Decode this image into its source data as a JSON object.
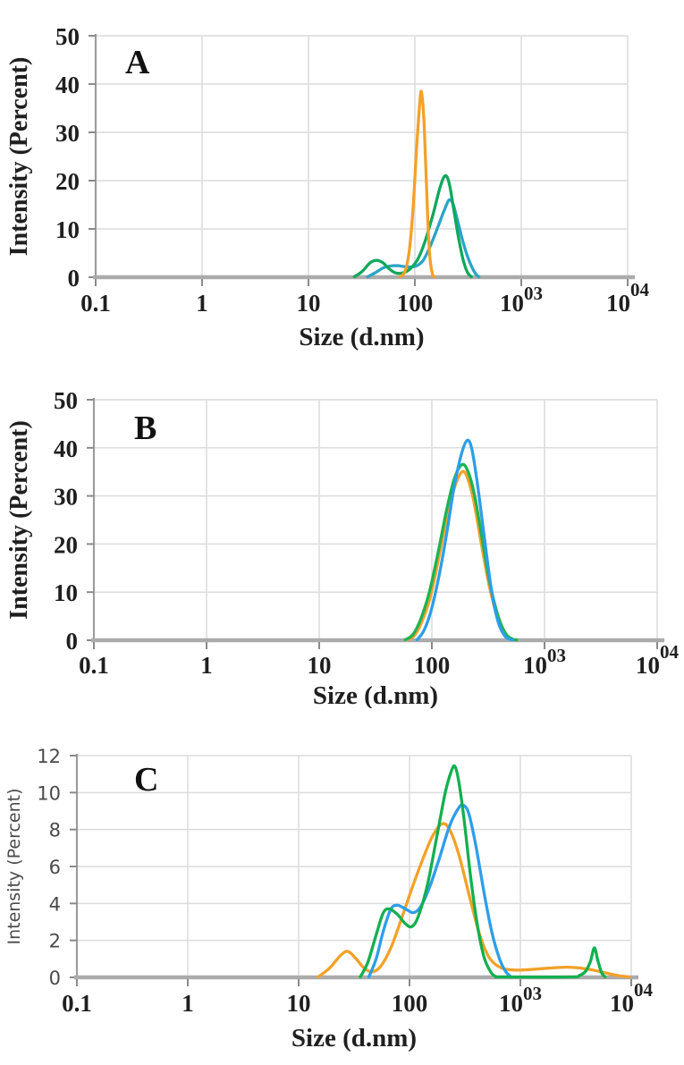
{
  "figure": {
    "description": "Three stacked dynamic light scattering intensity distribution plots",
    "background": "#ffffff",
    "text_color": "#1f1f1f",
    "grid_color": "#dcdcdc",
    "axis_color": "#9d9d9d",
    "baseline_color": "#ababab",
    "tick_color": "#8a8a8a"
  },
  "chart_data": [
    {
      "type": "line",
      "panel_label": "A",
      "xlabel": "Size (d.nm)",
      "ylabel": "Intensity (Percent)",
      "xscale": "log",
      "xlim": [
        0.1,
        10000
      ],
      "ylim": [
        0,
        50
      ],
      "grid": true,
      "legend": "none",
      "yticks": [
        0,
        10,
        20,
        30,
        40,
        50
      ],
      "xticks": [
        {
          "value": 0.1,
          "label": "0.1",
          "sup": ""
        },
        {
          "value": 1,
          "label": "1",
          "sup": ""
        },
        {
          "value": 10,
          "label": "10",
          "sup": ""
        },
        {
          "value": 100,
          "label": "100",
          "sup": ""
        },
        {
          "value": 1000,
          "label": "10",
          "sup": "03"
        },
        {
          "value": 10000,
          "label": "10",
          "sup": "04"
        }
      ],
      "draw_order": [
        "blue",
        "green",
        "orange"
      ],
      "series": [
        {
          "name": "orange",
          "color": "#f3a128",
          "points": [
            [
              72,
              0
            ],
            [
              80,
              1
            ],
            [
              88,
              5
            ],
            [
              96,
              14
            ],
            [
              104,
              27
            ],
            [
              112,
              37
            ],
            [
              116,
              38
            ],
            [
              122,
              32
            ],
            [
              128,
              20
            ],
            [
              134,
              9
            ],
            [
              140,
              3
            ],
            [
              147,
              0.5
            ],
            [
              152,
              0
            ]
          ]
        },
        {
          "name": "green",
          "color": "#10a85c",
          "points": [
            [
              27,
              0
            ],
            [
              32,
              1.2
            ],
            [
              38,
              3
            ],
            [
              44,
              3.5
            ],
            [
              50,
              3
            ],
            [
              57,
              1.8
            ],
            [
              64,
              1
            ],
            [
              72,
              0.8
            ],
            [
              82,
              1.1
            ],
            [
              93,
              2
            ],
            [
              107,
              3.8
            ],
            [
              125,
              7.5
            ],
            [
              148,
              13
            ],
            [
              172,
              18.5
            ],
            [
              192,
              21
            ],
            [
              210,
              19.5
            ],
            [
              232,
              14
            ],
            [
              258,
              8
            ],
            [
              285,
              3.5
            ],
            [
              312,
              1
            ],
            [
              340,
              0
            ]
          ]
        },
        {
          "name": "blue",
          "color": "#2aa4c6",
          "points": [
            [
              36,
              0
            ],
            [
              43,
              1
            ],
            [
              50,
              1.9
            ],
            [
              58,
              2.3
            ],
            [
              68,
              2.4
            ],
            [
              80,
              2.2
            ],
            [
              92,
              2.1
            ],
            [
              105,
              2.4
            ],
            [
              120,
              3.5
            ],
            [
              140,
              6.5
            ],
            [
              165,
              10.5
            ],
            [
              190,
              14
            ],
            [
              210,
              16
            ],
            [
              228,
              15.2
            ],
            [
              250,
              12
            ],
            [
              278,
              8
            ],
            [
              310,
              4.5
            ],
            [
              345,
              2
            ],
            [
              375,
              0.6
            ],
            [
              400,
              0
            ]
          ]
        }
      ]
    },
    {
      "type": "line",
      "panel_label": "B",
      "xlabel": "Size (d.nm)",
      "ylabel": "Intensity (Percent)",
      "xscale": "log",
      "xlim": [
        0.1,
        10000
      ],
      "ylim": [
        0,
        50
      ],
      "grid": true,
      "legend": "none",
      "yticks": [
        0,
        10,
        20,
        30,
        40,
        50
      ],
      "xticks": [
        {
          "value": 0.1,
          "label": "0.1",
          "sup": ""
        },
        {
          "value": 1,
          "label": "1",
          "sup": ""
        },
        {
          "value": 10,
          "label": "10",
          "sup": ""
        },
        {
          "value": 100,
          "label": "100",
          "sup": ""
        },
        {
          "value": 1000,
          "label": "10",
          "sup": "03"
        },
        {
          "value": 10000,
          "label": "10",
          "sup": "04"
        }
      ],
      "draw_order": [
        "orange",
        "green",
        "blue"
      ],
      "series": [
        {
          "name": "orange",
          "color": "#f3a128",
          "points": [
            [
              60,
              0
            ],
            [
              70,
              1
            ],
            [
              82,
              4
            ],
            [
              97,
              9
            ],
            [
              115,
              17
            ],
            [
              137,
              26
            ],
            [
              160,
              32
            ],
            [
              185,
              35
            ],
            [
              205,
              34
            ],
            [
              235,
              29
            ],
            [
              275,
              20
            ],
            [
              325,
              11
            ],
            [
              385,
              4.5
            ],
            [
              450,
              1.2
            ],
            [
              520,
              0.2
            ],
            [
              560,
              0
            ]
          ]
        },
        {
          "name": "green",
          "color": "#1db353",
          "points": [
            [
              58,
              0
            ],
            [
              68,
              1.2
            ],
            [
              80,
              4.5
            ],
            [
              95,
              10
            ],
            [
              113,
              18
            ],
            [
              135,
              27
            ],
            [
              158,
              33.5
            ],
            [
              185,
              36.5
            ],
            [
              210,
              35
            ],
            [
              240,
              30
            ],
            [
              280,
              21
            ],
            [
              330,
              11.5
            ],
            [
              390,
              4.8
            ],
            [
              455,
              1.3
            ],
            [
              525,
              0.2
            ],
            [
              565,
              0
            ]
          ]
        },
        {
          "name": "blue",
          "color": "#2d9ee9",
          "points": [
            [
              74,
              0
            ],
            [
              85,
              2
            ],
            [
              98,
              6
            ],
            [
              115,
              13
            ],
            [
              135,
              22
            ],
            [
              158,
              32
            ],
            [
              182,
              38.5
            ],
            [
              205,
              41.5
            ],
            [
              225,
              40
            ],
            [
              252,
              33
            ],
            [
              290,
              22
            ],
            [
              335,
              11
            ],
            [
              385,
              4
            ],
            [
              440,
              1
            ],
            [
              490,
              0.2
            ],
            [
              520,
              0
            ]
          ]
        }
      ]
    },
    {
      "type": "line",
      "panel_label": "C",
      "xlabel": "Size (d.nm)",
      "ylabel": "Intensity (Percent)",
      "xscale": "log",
      "xlim": [
        0.1,
        10000
      ],
      "ylim": [
        0,
        12
      ],
      "grid": true,
      "legend": "none",
      "yticks": [
        0,
        2,
        4,
        6,
        8,
        10,
        12
      ],
      "xticks": [
        {
          "value": 0.1,
          "label": "0.1",
          "sup": ""
        },
        {
          "value": 1,
          "label": "1",
          "sup": ""
        },
        {
          "value": 10,
          "label": "10",
          "sup": ""
        },
        {
          "value": 100,
          "label": "100",
          "sup": ""
        },
        {
          "value": 1000,
          "label": "10",
          "sup": "03"
        },
        {
          "value": 10000,
          "label": "10",
          "sup": "04"
        }
      ],
      "draw_order": [
        "orange",
        "blue",
        "green"
      ],
      "series": [
        {
          "name": "orange",
          "color": "#f3a128",
          "points": [
            [
              15,
              0
            ],
            [
              19,
              0.5
            ],
            [
              24,
              1.2
            ],
            [
              28,
              1.4
            ],
            [
              33,
              1
            ],
            [
              39,
              0.5
            ],
            [
              46,
              0.3
            ],
            [
              55,
              0.6
            ],
            [
              68,
              1.6
            ],
            [
              85,
              3.2
            ],
            [
              105,
              4.8
            ],
            [
              130,
              6.3
            ],
            [
              160,
              7.6
            ],
            [
              195,
              8.3
            ],
            [
              230,
              8
            ],
            [
              280,
              6.6
            ],
            [
              350,
              4.3
            ],
            [
              430,
              2.3
            ],
            [
              520,
              1.1
            ],
            [
              650,
              0.55
            ],
            [
              850,
              0.4
            ],
            [
              1200,
              0.42
            ],
            [
              1800,
              0.5
            ],
            [
              2600,
              0.55
            ],
            [
              3500,
              0.5
            ],
            [
              4500,
              0.4
            ],
            [
              5800,
              0.25
            ],
            [
              7500,
              0.1
            ],
            [
              9500,
              0
            ]
          ]
        },
        {
          "name": "blue",
          "color": "#2d9ee9",
          "points": [
            [
              43,
              0
            ],
            [
              50,
              1
            ],
            [
              58,
              2.5
            ],
            [
              68,
              3.7
            ],
            [
              78,
              3.9
            ],
            [
              92,
              3.7
            ],
            [
              108,
              3.5
            ],
            [
              125,
              3.8
            ],
            [
              150,
              4.8
            ],
            [
              185,
              6.4
            ],
            [
              230,
              8.2
            ],
            [
              280,
              9.2
            ],
            [
              310,
              9.3
            ],
            [
              345,
              8.8
            ],
            [
              400,
              7
            ],
            [
              470,
              4.6
            ],
            [
              550,
              2.5
            ],
            [
              640,
              1.1
            ],
            [
              730,
              0.35
            ],
            [
              820,
              0
            ]
          ]
        },
        {
          "name": "green",
          "color": "#12b04f",
          "points": [
            [
              36,
              0
            ],
            [
              42,
              0.8
            ],
            [
              50,
              2.3
            ],
            [
              58,
              3.5
            ],
            [
              66,
              3.7
            ],
            [
              78,
              3.4
            ],
            [
              92,
              2.9
            ],
            [
              105,
              2.75
            ],
            [
              120,
              3.3
            ],
            [
              145,
              5
            ],
            [
              175,
              7.5
            ],
            [
              210,
              10
            ],
            [
              240,
              11.2
            ],
            [
              258,
              11.4
            ],
            [
              278,
              10.6
            ],
            [
              310,
              8.6
            ],
            [
              355,
              5.5
            ],
            [
              410,
              2.8
            ],
            [
              470,
              1.1
            ],
            [
              540,
              0.3
            ],
            [
              600,
              0.05
            ],
            [
              700,
              0
            ],
            [
              2800,
              0
            ],
            [
              3400,
              0.1
            ],
            [
              3900,
              0.35
            ],
            [
              4300,
              0.9
            ],
            [
              4650,
              1.6
            ],
            [
              5000,
              0.9
            ],
            [
              5400,
              0.25
            ],
            [
              5800,
              0
            ]
          ]
        }
      ]
    }
  ]
}
